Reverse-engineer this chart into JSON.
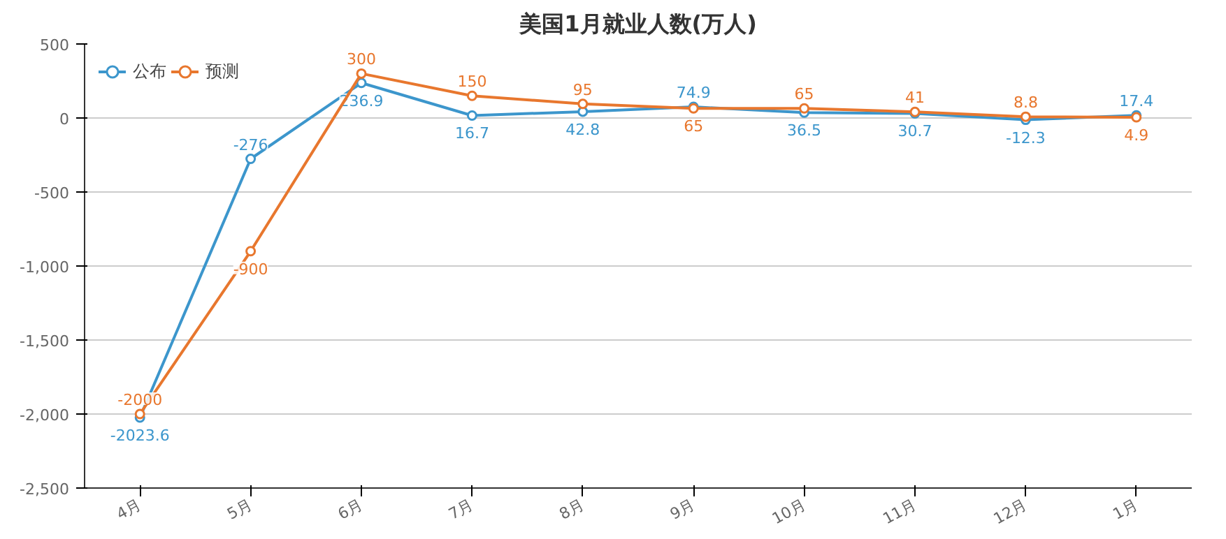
{
  "chart_data": {
    "type": "line",
    "title": "美国1月就业人数(万人)",
    "categories": [
      "4月",
      "5月",
      "6月",
      "7月",
      "8月",
      "9月",
      "10月",
      "11月",
      "12月",
      "1月"
    ],
    "series": [
      {
        "name": "公布",
        "color": "#3c96cc",
        "values": [
          -2023.6,
          -276,
          236.9,
          16.7,
          42.8,
          74.9,
          36.5,
          30.7,
          -12.3,
          17.4
        ]
      },
      {
        "name": "预测",
        "color": "#e8772e",
        "values": [
          -2000,
          -900,
          300,
          150,
          95,
          65,
          65,
          41,
          8.8,
          4.9
        ]
      }
    ],
    "ylim": [
      -2500,
      500
    ],
    "yticks": [
      {
        "value": -2500,
        "label": "-2,500"
      },
      {
        "value": -2000,
        "label": "-2,000"
      },
      {
        "value": -1500,
        "label": "-1,500"
      },
      {
        "value": -1000,
        "label": "-1,000"
      },
      {
        "value": -500,
        "label": "-500"
      },
      0,
      500
    ],
    "grid": "y",
    "legend": "top left",
    "marker": "circle",
    "line_style": "solid",
    "data_labels": true
  }
}
